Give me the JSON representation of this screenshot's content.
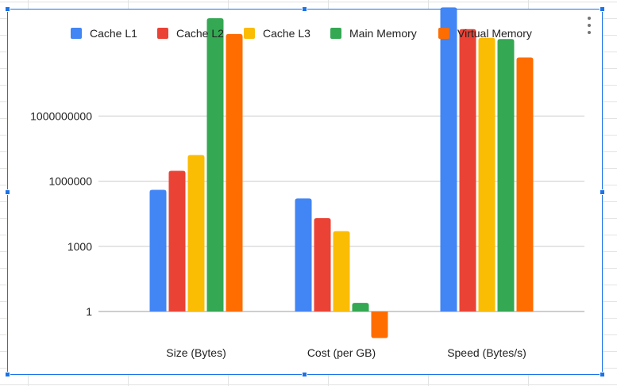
{
  "chart_data": {
    "type": "bar",
    "y_scale": "log",
    "categories": [
      "Size (Bytes)",
      "Cost (per GB)",
      "Speed (Bytes/s)"
    ],
    "series": [
      {
        "name": "Cache L1",
        "color": "#4285f4",
        "values": [
          400000,
          160000,
          100000000000000
        ]
      },
      {
        "name": "Cache L2",
        "color": "#ea4335",
        "values": [
          3000000,
          20000,
          10000000000000
        ]
      },
      {
        "name": "Cache L3",
        "color": "#fbbc04",
        "values": [
          16000000,
          5000,
          4000000000000
        ]
      },
      {
        "name": "Main Memory",
        "color": "#34a853",
        "values": [
          32000000000000,
          2.5,
          3500000000000
        ]
      },
      {
        "name": "Virtual Memory",
        "color": "#ff6d01",
        "values": [
          6000000000000,
          0.06,
          500000000000
        ]
      }
    ],
    "y_ticks": [
      {
        "value": 1,
        "label": "1"
      },
      {
        "value": 1000,
        "label": "1000"
      },
      {
        "value": 1000000,
        "label": "1000000"
      },
      {
        "value": 1000000000,
        "label": "1000000000"
      }
    ],
    "legend_position": "top",
    "grid": true
  }
}
